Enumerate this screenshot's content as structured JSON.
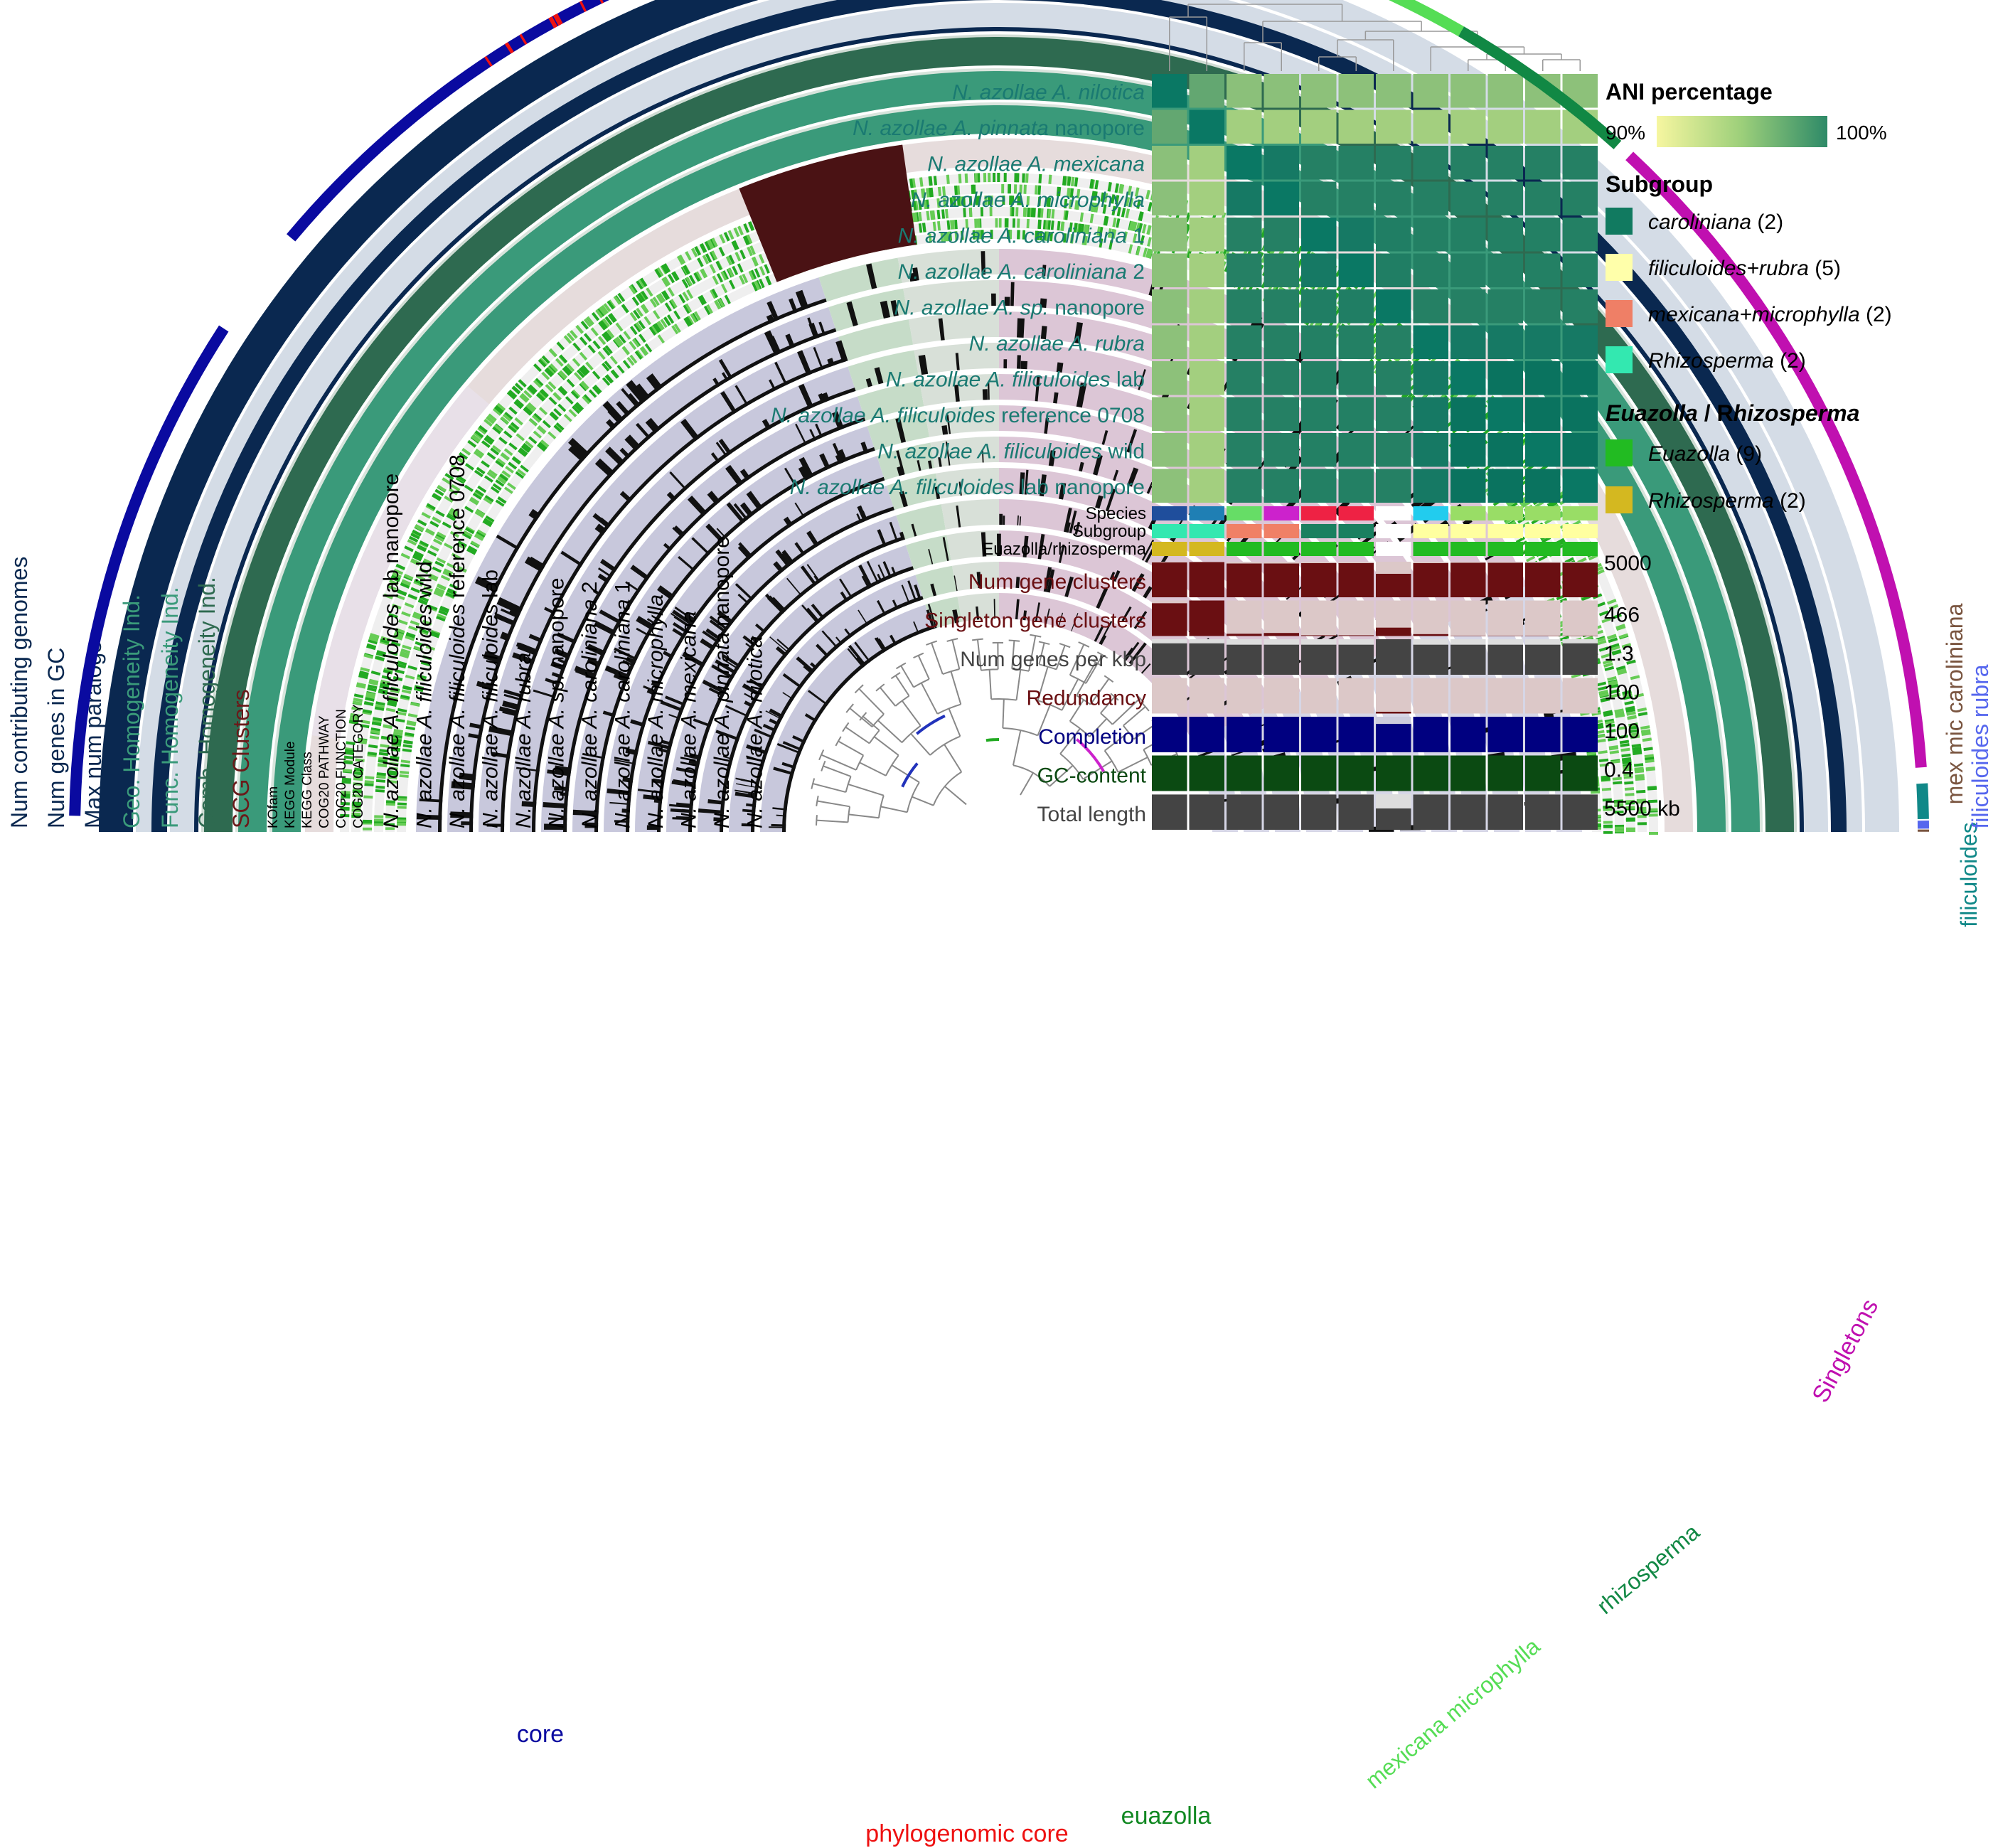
{
  "genomes": [
    {
      "pre": "N. azollae A. ",
      "name": "nilotica",
      "post": ""
    },
    {
      "pre": "N. azollae A. ",
      "name": "pinnata",
      "post": " nanopore"
    },
    {
      "pre": "N. azollae A. ",
      "name": "mexicana",
      "post": ""
    },
    {
      "pre": "N. azollae A. ",
      "name": "microphylla",
      "post": ""
    },
    {
      "pre": "N. azollae A. ",
      "name": "caroliniana",
      "post": " 1"
    },
    {
      "pre": "N. azollae A. ",
      "name": "caroliniana",
      "post": " 2"
    },
    {
      "pre": "N. azollae A. ",
      "name": "sp.",
      "post": " nanopore"
    },
    {
      "pre": "N. azollae A. ",
      "name": "rubra",
      "post": ""
    },
    {
      "pre": "N. azollae A. ",
      "name": "filiculoides",
      "post": " lab"
    },
    {
      "pre": "N. azollae A. ",
      "name": "filiculoides",
      "post": " reference 0708"
    },
    {
      "pre": "N. azollae A. ",
      "name": "filiculoides",
      "post": " wild"
    },
    {
      "pre": "N. azollae A. ",
      "name": "filiculoides",
      "post": " lab nanopore"
    }
  ],
  "ani_matrix": [
    [
      100,
      96.6,
      95.1,
      95.1,
      95.0,
      95.0,
      95.1,
      95.0,
      95.0,
      95.0,
      95.0,
      95.0
    ],
    [
      96.6,
      100,
      94.2,
      94.2,
      94.2,
      94.2,
      94.2,
      94.2,
      94.2,
      94.2,
      94.2,
      94.2
    ],
    [
      95.1,
      94.2,
      100,
      99.9,
      99.0,
      99.0,
      99.0,
      99.0,
      99.0,
      99.0,
      99.0,
      99.0
    ],
    [
      95.1,
      94.2,
      99.9,
      100,
      99.0,
      99.0,
      99.0,
      99.0,
      99.0,
      99.0,
      99.0,
      99.0
    ],
    [
      95.0,
      94.2,
      99.0,
      99.0,
      100,
      99.9,
      99.3,
      99.1,
      99.1,
      99.1,
      99.1,
      99.1
    ],
    [
      95.0,
      94.2,
      99.0,
      99.0,
      99.9,
      100,
      99.3,
      99.1,
      99.1,
      99.1,
      99.1,
      99.1
    ],
    [
      95.1,
      94.2,
      99.0,
      99.0,
      99.3,
      99.3,
      100,
      99.0,
      99.0,
      99.0,
      99.0,
      99.0
    ],
    [
      95.0,
      94.2,
      99.0,
      99.0,
      99.1,
      99.1,
      99.0,
      100,
      99.9,
      99.9,
      99.9,
      99.9
    ],
    [
      95.0,
      94.2,
      99.0,
      99.0,
      99.1,
      99.1,
      99.0,
      99.9,
      100,
      99.99,
      99.99,
      99.99
    ],
    [
      95.0,
      94.2,
      99.0,
      99.0,
      99.1,
      99.1,
      99.0,
      99.9,
      99.99,
      100,
      99.99,
      99.99
    ],
    [
      95.0,
      94.2,
      99.0,
      99.0,
      99.1,
      99.1,
      99.0,
      99.9,
      99.99,
      99.99,
      100,
      99.99
    ],
    [
      95.0,
      94.2,
      99.0,
      99.0,
      99.1,
      99.1,
      99.0,
      99.9,
      99.99,
      99.99,
      99.99,
      100
    ]
  ],
  "layers": {
    "species_colors": [
      "#1f4e9c",
      "#1f7fb4",
      "#66dd66",
      "#cc22cc",
      "#ee2244",
      "#ee2244",
      "#ffffff",
      "#22ccee",
      "#99dd66",
      "#99dd66",
      "#99dd66",
      "#99dd66"
    ],
    "subgroup_colors": [
      "#33e8b0",
      "#33e8b0",
      "#f08066",
      "#f08066",
      "#1a8060",
      "#1a8060",
      "#ffffff",
      "#ffffa0",
      "#ffffa0",
      "#ffffa0",
      "#ffffa0",
      "#ffffa0"
    ],
    "euazolla_colors": [
      "#d4b820",
      "#d4b820",
      "#22bb22",
      "#22bb22",
      "#22bb22",
      "#22bb22",
      "#ffffff",
      "#22bb22",
      "#22bb22",
      "#22bb22",
      "#22bb22",
      "#22bb22"
    ]
  },
  "labels": {
    "species": "Species",
    "subgroup": "Subgroup",
    "euazolla_rhizosperma": "Euazolla/rhizosperma"
  },
  "bars": [
    {
      "name": "Num gene clusters",
      "max_label": "5000",
      "max": 5000,
      "color": "#6a0f12",
      "bg": "#dcc8c8",
      "label_color": "#6a0f12",
      "values": [
        4900,
        4950,
        4750,
        4750,
        4800,
        4800,
        3300,
        4800,
        4850,
        4850,
        4850,
        4850
      ]
    },
    {
      "name": "Singleton gene clusters",
      "max_label": "466",
      "max": 466,
      "color": "#6a0f12",
      "bg": "#dcc8c8",
      "label_color": "#6a0f12",
      "values": [
        430,
        466,
        30,
        40,
        10,
        10,
        110,
        25,
        5,
        5,
        5,
        5
      ]
    },
    {
      "name": "Num genes per kbp",
      "max_label": "1.3",
      "max": 1.3,
      "color": "#444444",
      "bg": "#dddddd",
      "label_color": "#444444",
      "values": [
        1.15,
        1.15,
        1.1,
        1.1,
        1.1,
        1.1,
        1.3,
        1.1,
        1.1,
        1.1,
        1.1,
        1.15
      ]
    },
    {
      "name": "Redundancy",
      "max_label": "100",
      "max": 100,
      "color": "#6a0f12",
      "bg": "#dcc8c8",
      "label_color": "#6a0f12",
      "values": [
        0,
        0,
        0,
        0,
        0,
        0,
        5,
        0,
        0,
        0,
        0,
        0
      ]
    },
    {
      "name": "Completion",
      "max_label": "100",
      "max": 100,
      "color": "#000080",
      "bg": "#ccccdd",
      "label_color": "#000080",
      "values": [
        100,
        100,
        100,
        100,
        100,
        100,
        80,
        100,
        100,
        100,
        100,
        100
      ]
    },
    {
      "name": "GC-content",
      "max_label": "0.4",
      "max": 0.4,
      "color": "#0b4a12",
      "bg": "#c8dcc8",
      "label_color": "#0b4a12",
      "values": [
        0.4,
        0.4,
        0.4,
        0.4,
        0.4,
        0.4,
        0.4,
        0.4,
        0.4,
        0.4,
        0.4,
        0.4
      ]
    },
    {
      "name": "Total length",
      "max_label": "5500 kb",
      "max": 5500,
      "color": "#444444",
      "bg": "#dddddd",
      "label_color": "#444444",
      "values": [
        5450,
        5450,
        5450,
        5450,
        5450,
        5450,
        3300,
        5450,
        5450,
        5450,
        5450,
        5450
      ]
    }
  ],
  "legend": {
    "ani_title": "ANI percentage",
    "ani_min": "90%",
    "ani_max": "100%",
    "subgroup_title": "Subgroup",
    "subgroups": [
      {
        "name": "caroliniana",
        "count": " (2)",
        "color": "#117a60"
      },
      {
        "name": "filiculoides+rubra",
        "count": " (5)",
        "color": "#ffffaa"
      },
      {
        "name": "mexicana+microphylla",
        "count": " (2)",
        "color": "#ef7f66"
      },
      {
        "name": "Rhizosperma",
        "count": " (2)",
        "color": "#33e8b0"
      }
    ],
    "eua_title_a": "Euazolla",
    "eua_title_b": " / R",
    "eua_title_c": "hizosperma",
    "eua": [
      {
        "name": "Euazolla",
        "count": " (9)",
        "color": "#22bb22"
      },
      {
        "name": "Rhizosperma",
        "count": " (2)",
        "color": "#d4b820"
      }
    ]
  },
  "ring_labels": [
    {
      "text": "Num contributing genomes",
      "color": "#0a2850"
    },
    {
      "text": "Num genes in GC",
      "color": "#0a2850"
    },
    {
      "text": "Max num paralogs",
      "color": "#0a2850"
    },
    {
      "text": "Geo. Homogeneity Ind.",
      "color": "#3a9a7a"
    },
    {
      "text": "Func. Homogeneity Ind.",
      "color": "#3a9a7a"
    },
    {
      "text": "Comb. Homogeneity Ind.",
      "color": "#2e6a50"
    },
    {
      "text": "SCG Clusters",
      "color": "#6a1a1a"
    }
  ],
  "func_labels": [
    "KOfam",
    "KEGG Module",
    "KEGG Class",
    "COG20 PATHWAY",
    "COG20 FUNCTION",
    "COG20 CATEGORY"
  ],
  "bins": [
    {
      "text": "core",
      "color": "#0a0aa0"
    },
    {
      "text": "phylogenomic core",
      "color": "#ee1111"
    },
    {
      "text": "euazolla",
      "color": "#118822"
    },
    {
      "text": "mexicana microphylla",
      "color": "#55dd55"
    },
    {
      "text": "rhizosperma",
      "color": "#118844"
    },
    {
      "text": "Singletons",
      "color": "#c010b0"
    },
    {
      "text": "filiculoides",
      "color": "#108888"
    },
    {
      "text": "filiculoides rubra",
      "color": "#5566ee"
    },
    {
      "text": "mex mic caroliniana",
      "color": "#7a5540"
    }
  ]
}
